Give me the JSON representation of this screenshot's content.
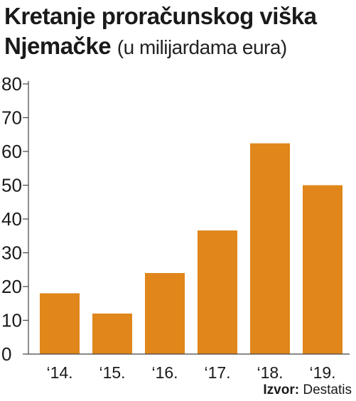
{
  "title": {
    "line1": "Kretanje proračunskog viška",
    "line2": "Njemačke",
    "subtitle": "(u milijardama eura)"
  },
  "source": {
    "label": "Izvor:",
    "value": "Destatis"
  },
  "colors": {
    "bar": "#E0861B",
    "axis": "#444444",
    "text": "#1a1a1a",
    "grid": "#999999"
  },
  "chart_data": {
    "type": "bar",
    "categories": [
      "‘14.",
      "‘15.",
      "‘16.",
      "‘17.",
      "‘18.",
      "‘19."
    ],
    "values": [
      18,
      12,
      24,
      36.6,
      62.4,
      50
    ],
    "yticks": [
      0,
      10,
      20,
      30,
      40,
      50,
      60,
      70,
      80
    ],
    "ylim": [
      0,
      80
    ],
    "grid": false
  }
}
